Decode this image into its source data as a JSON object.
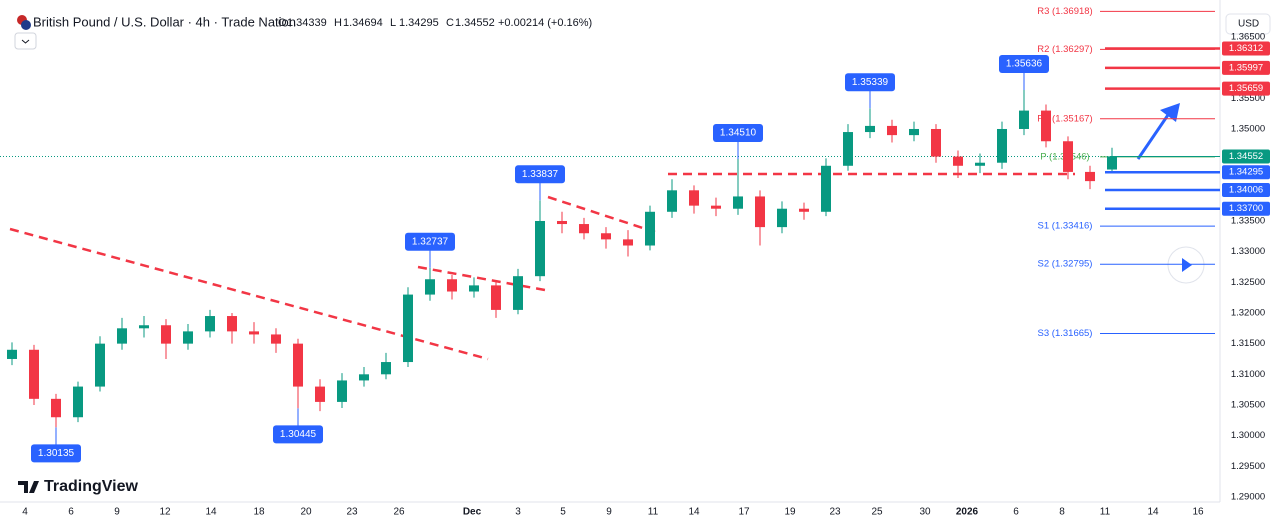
{
  "chart_data": {
    "type": "candlestick",
    "header": {
      "symbol": "British Pound / U.S. Dollar · 4h · Trade Nation",
      "ohlc": [
        {
          "key": "O",
          "value": "1.34339"
        },
        {
          "key": "H",
          "value": "1.34694"
        },
        {
          "key": "L",
          "value": "1.34295"
        },
        {
          "key": "C",
          "value": "1.34552"
        }
      ],
      "change": "+0.00214 (+0.16%)"
    },
    "currency": "USD",
    "brand": "TradingView",
    "up_color": "#089981",
    "down_color": "#f23645",
    "x_labels": [
      "4",
      "6",
      "9",
      "12",
      "14",
      "18",
      "20",
      "23",
      "26",
      "Dec",
      "3",
      "5",
      "9",
      "11",
      "14",
      "17",
      "19",
      "23",
      "25",
      "30",
      "2026",
      "6",
      "8",
      "11",
      "14",
      "16"
    ],
    "ylim": [
      1.28918,
      1.3694
    ],
    "yticks": [
      {
        "value": 1.365,
        "label": "1.36500"
      },
      {
        "value": 1.355,
        "label": "1.35500"
      },
      {
        "value": 1.35,
        "label": "1.35000"
      },
      {
        "value": 1.335,
        "label": "1.33500"
      },
      {
        "value": 1.33,
        "label": "1.33000"
      },
      {
        "value": 1.325,
        "label": "1.32500"
      },
      {
        "value": 1.32,
        "label": "1.32000"
      },
      {
        "value": 1.315,
        "label": "1.31500"
      },
      {
        "value": 1.31,
        "label": "1.31000"
      },
      {
        "value": 1.305,
        "label": "1.30500"
      },
      {
        "value": 1.3,
        "label": "1.30000"
      },
      {
        "value": 1.295,
        "label": "1.29500"
      },
      {
        "value": 1.29,
        "label": "1.29000"
      }
    ],
    "open": [
      1.3125,
      1.314,
      1.306,
      1.303,
      1.308,
      1.315,
      1.3175,
      1.318,
      1.315,
      1.317,
      1.3195,
      1.317,
      1.3165,
      1.315,
      1.308,
      1.3055,
      1.309,
      1.31,
      1.312,
      1.323,
      1.3255,
      1.3235,
      1.3245,
      1.3205,
      1.326,
      1.335,
      1.3345,
      1.333,
      1.332,
      1.331,
      1.3365,
      1.34,
      1.3375,
      1.337,
      1.339,
      1.334,
      1.337,
      1.3365,
      1.344,
      1.3495,
      1.3505,
      1.349,
      1.35,
      1.3455,
      1.344,
      1.3445,
      1.35,
      1.353,
      1.348,
      1.343,
      1.34339
    ],
    "high": [
      1.3152,
      1.3148,
      1.3068,
      1.3088,
      1.3162,
      1.3192,
      1.3195,
      1.319,
      1.3182,
      1.3205,
      1.32,
      1.3185,
      1.3175,
      1.3158,
      1.3092,
      1.3102,
      1.3112,
      1.3135,
      1.3242,
      1.32737,
      1.3262,
      1.3258,
      1.3252,
      1.3272,
      1.33837,
      1.3365,
      1.3355,
      1.334,
      1.3335,
      1.3375,
      1.3418,
      1.3408,
      1.3388,
      1.3451,
      1.34,
      1.3382,
      1.338,
      1.3452,
      1.3508,
      1.35339,
      1.3515,
      1.3512,
      1.3508,
      1.3465,
      1.346,
      1.3512,
      1.35636,
      1.354,
      1.3488,
      1.344,
      1.34694
    ],
    "low": [
      1.3115,
      1.305,
      1.30135,
      1.3022,
      1.3072,
      1.314,
      1.316,
      1.3125,
      1.314,
      1.316,
      1.315,
      1.315,
      1.3135,
      1.30445,
      1.304,
      1.3045,
      1.308,
      1.3092,
      1.3112,
      1.322,
      1.3222,
      1.3225,
      1.3192,
      1.3198,
      1.3252,
      1.333,
      1.332,
      1.3305,
      1.3292,
      1.3302,
      1.3355,
      1.3362,
      1.3358,
      1.336,
      1.331,
      1.333,
      1.3352,
      1.3358,
      1.3432,
      1.3485,
      1.3478,
      1.348,
      1.3445,
      1.342,
      1.3428,
      1.3435,
      1.349,
      1.347,
      1.3418,
      1.3402,
      1.34295
    ],
    "close": [
      1.314,
      1.306,
      1.303,
      1.308,
      1.315,
      1.3175,
      1.318,
      1.315,
      1.317,
      1.3195,
      1.317,
      1.3165,
      1.315,
      1.308,
      1.3055,
      1.309,
      1.31,
      1.312,
      1.323,
      1.3255,
      1.3235,
      1.3245,
      1.3205,
      1.326,
      1.335,
      1.3345,
      1.333,
      1.332,
      1.331,
      1.3365,
      1.34,
      1.3375,
      1.337,
      1.339,
      1.334,
      1.337,
      1.3365,
      1.344,
      1.3495,
      1.3505,
      1.349,
      1.35,
      1.3455,
      1.344,
      1.3445,
      1.35,
      1.353,
      1.348,
      1.343,
      1.3415,
      1.34552
    ],
    "annotations": [
      {
        "value": 1.30135,
        "label": "1.30135"
      },
      {
        "value": 1.30445,
        "label": "1.30445"
      },
      {
        "value": 1.32737,
        "label": "1.32737"
      },
      {
        "value": 1.33837,
        "label": "1.33837"
      },
      {
        "value": 1.3451,
        "label": "1.34510"
      },
      {
        "value": 1.35339,
        "label": "1.35339"
      },
      {
        "value": 1.35636,
        "label": "1.35636"
      }
    ],
    "pivots": [
      {
        "label": "R3 (1.36918)",
        "value": 1.36918,
        "color": "#f23645"
      },
      {
        "label": "R2 (1.36297)",
        "value": 1.36297,
        "color": "#f23645"
      },
      {
        "label": "R1 (1.35167)",
        "value": 1.35167,
        "color": "#f23645"
      },
      {
        "label": "P (1.34546)",
        "value": 1.34546,
        "color": "#4caf50"
      },
      {
        "label": "S1 (1.33416)",
        "value": 1.33416,
        "color": "#2962ff"
      },
      {
        "label": "S2 (1.32795)",
        "value": 1.32795,
        "color": "#2962ff"
      },
      {
        "label": "S3 (1.31665)",
        "value": 1.31665,
        "color": "#2962ff"
      }
    ],
    "levels": [
      {
        "value": 1.36312,
        "color": "#f23645"
      },
      {
        "value": 1.35997,
        "color": "#f23645"
      },
      {
        "value": 1.35659,
        "color": "#f23645"
      },
      {
        "value": 1.34295,
        "color": "#2962ff"
      },
      {
        "value": 1.34006,
        "color": "#2962ff"
      },
      {
        "value": 1.337,
        "label": "1.33700",
        "color": "#2962ff"
      }
    ],
    "last_price": {
      "value": 1.34552,
      "color": "#089981"
    }
  }
}
